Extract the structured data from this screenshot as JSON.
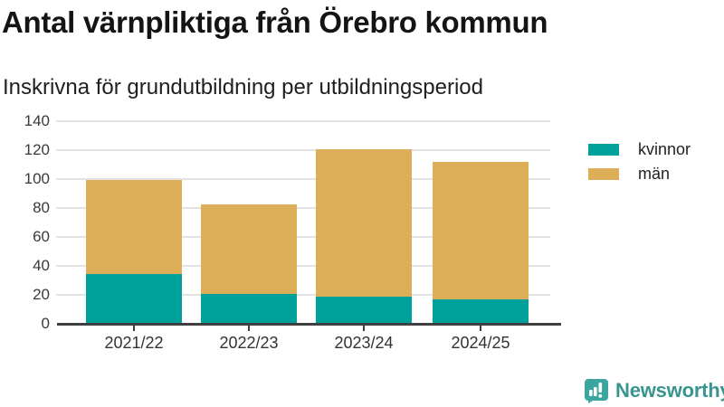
{
  "header": {
    "title": "Antal värnpliktiga från Örebro kommun",
    "subtitle": "Inskrivna för grundutbildning per utbildningsperiod"
  },
  "chart_data": {
    "type": "bar",
    "stacked": true,
    "title": "Antal värnpliktiga från Örebro kommun",
    "subtitle": "Inskrivna för grundutbildning per utbildningsperiod",
    "categories": [
      "2021/22",
      "2022/23",
      "2023/24",
      "2024/25"
    ],
    "series": [
      {
        "name": "kvinnor",
        "color": "#00a09b",
        "values": [
          34,
          20,
          18,
          16
        ]
      },
      {
        "name": "män",
        "color": "#dcae58",
        "values": [
          65,
          62,
          102,
          95
        ]
      }
    ],
    "totals": [
      99,
      82,
      120,
      111
    ],
    "yticks": [
      0,
      20,
      40,
      60,
      80,
      100,
      120,
      140
    ],
    "ylim": [
      0,
      140
    ],
    "xlabel": "",
    "ylabel": "",
    "grid": true,
    "legend_position": "right"
  },
  "branding": {
    "logo_text": "Newsworthy",
    "logo_color": "#3aa69f"
  }
}
